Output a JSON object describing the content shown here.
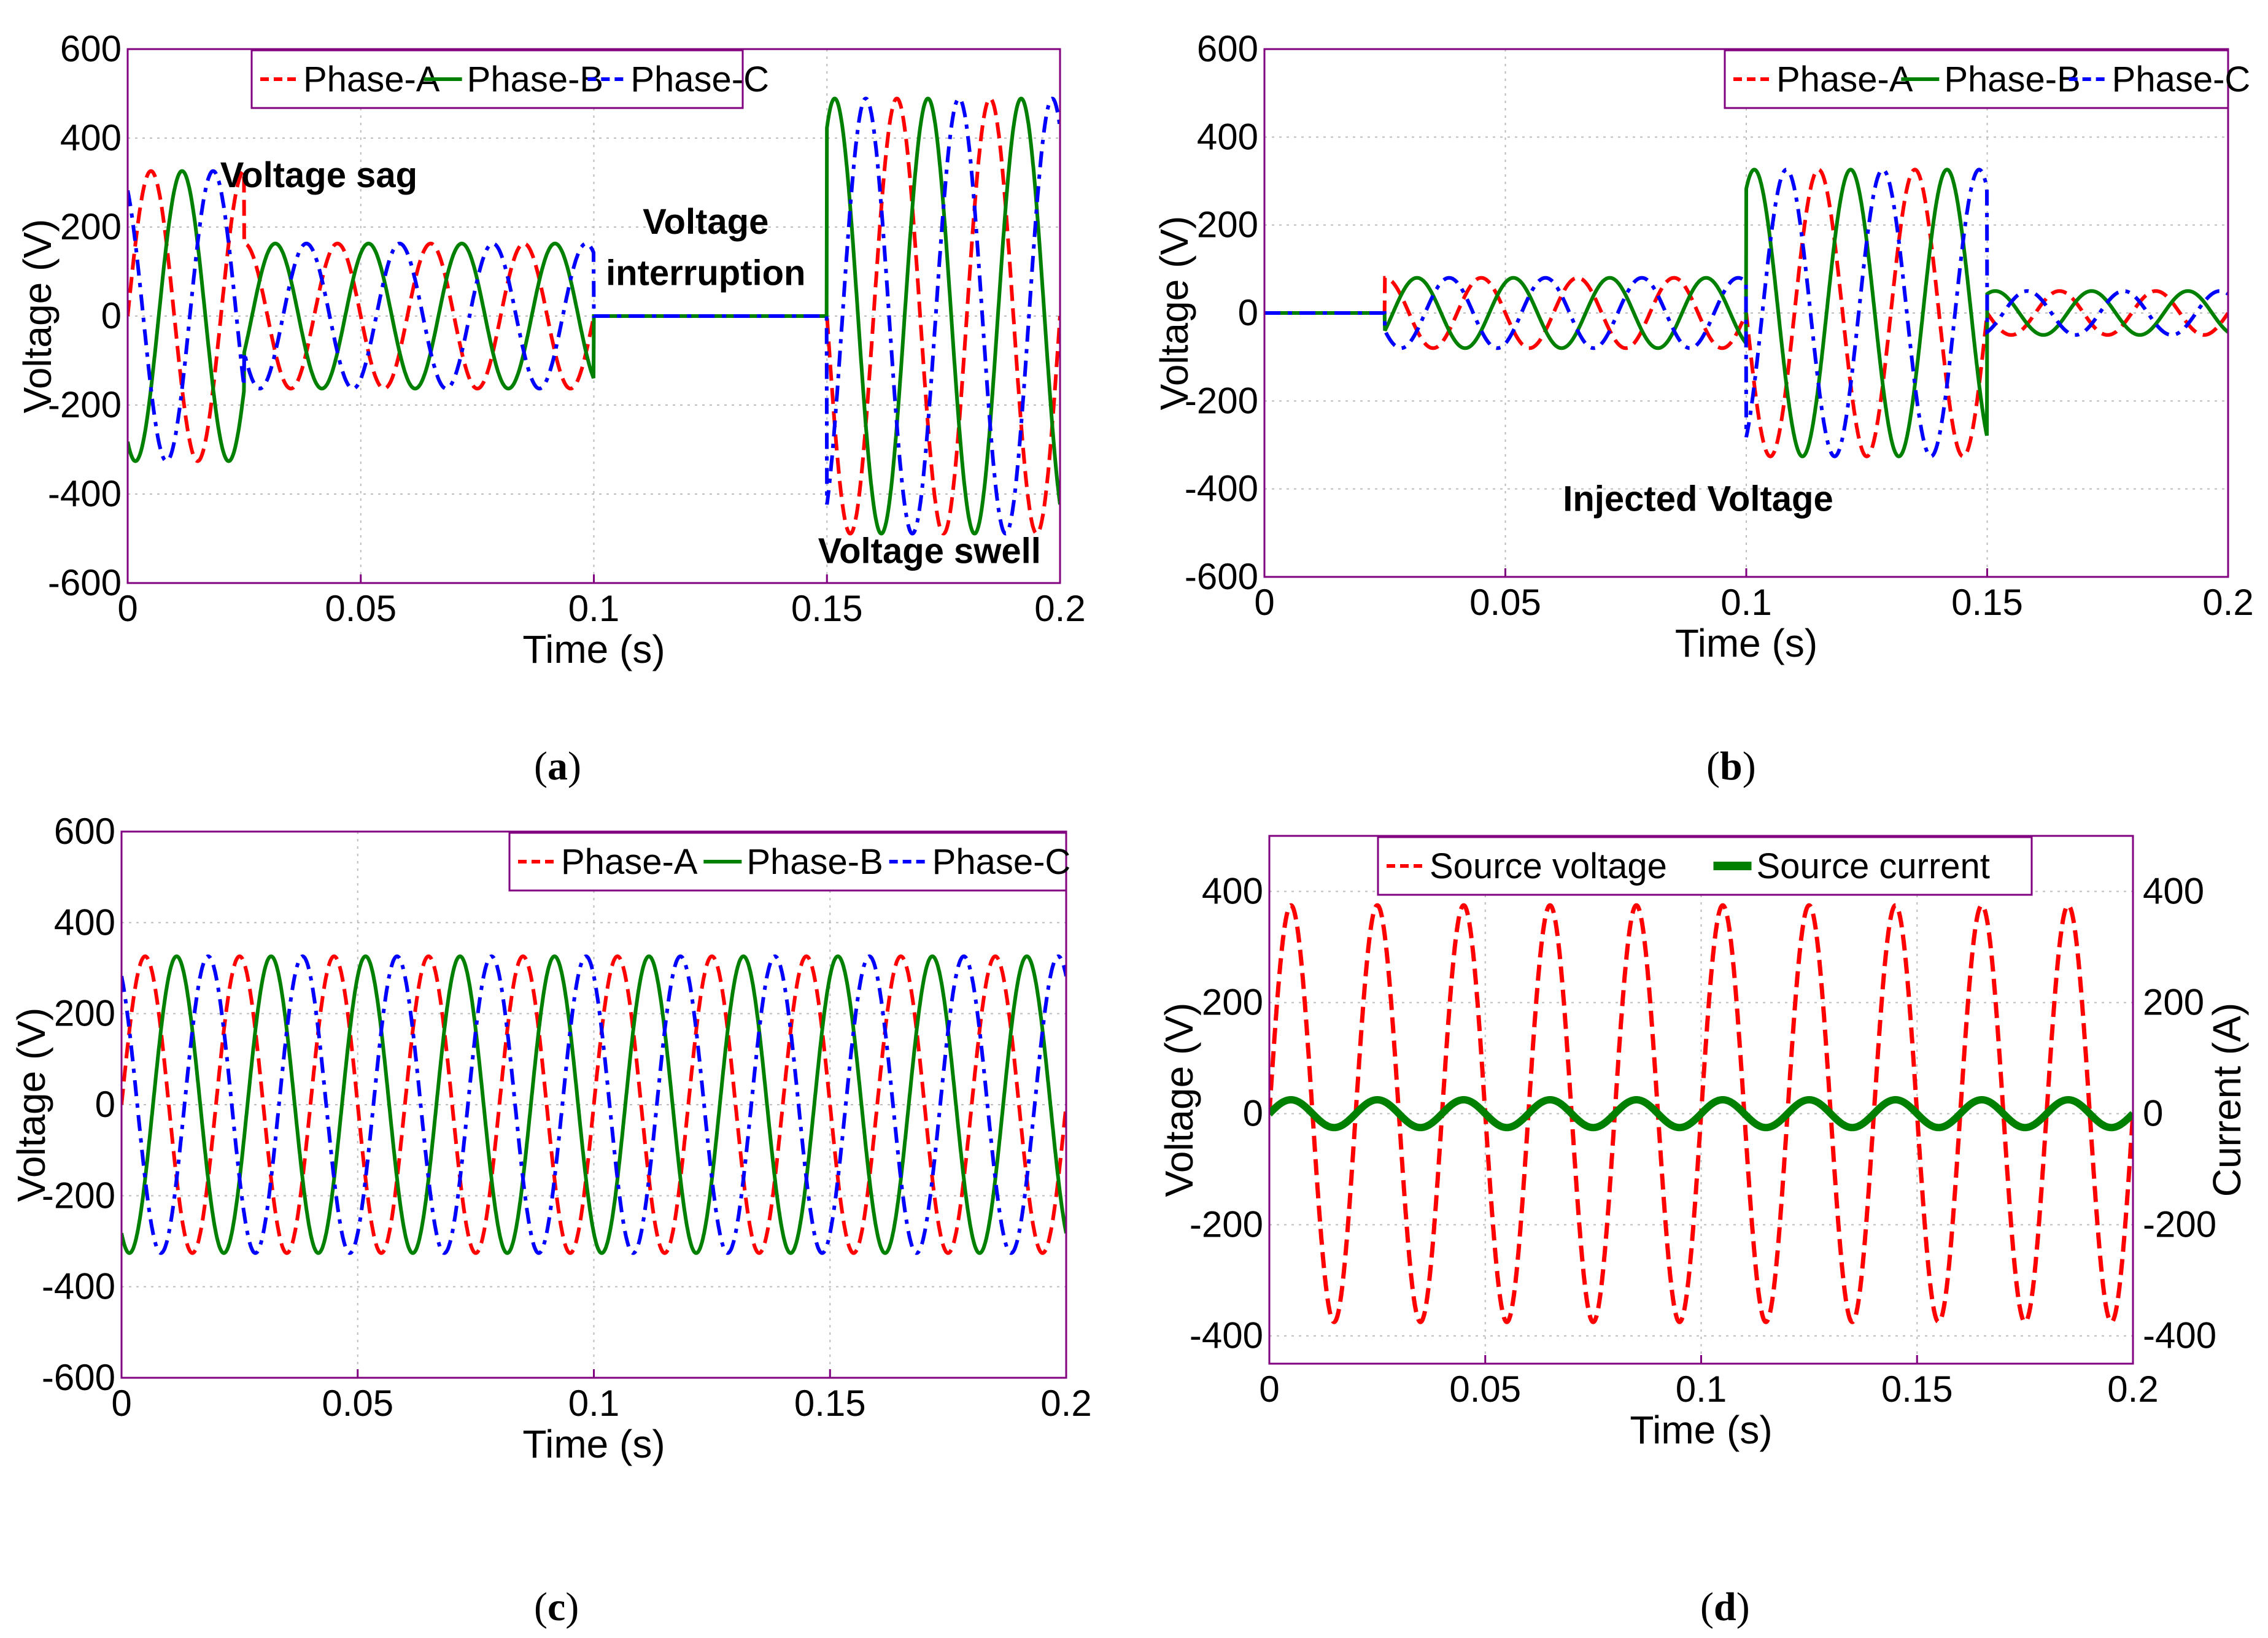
{
  "chart_data": [
    {
      "id": "a",
      "type": "line",
      "caption": {
        "open": "(",
        "letter": "a",
        "close": ")"
      },
      "xlabel": "Time (s)",
      "ylabel": "Voltage (V)",
      "xlim": [
        0,
        0.2
      ],
      "ylim": [
        -600,
        600
      ],
      "xticks": [
        "0",
        "0.05",
        "0.1",
        "0.15",
        "0.2"
      ],
      "yticks": [
        "-600",
        "-400",
        "-200",
        "0",
        "200",
        "400",
        "600"
      ],
      "legend_position": "top-center",
      "series": [
        {
          "name": "Phase-A",
          "color": "#ff0000",
          "style": "dashed",
          "phase_deg": 0
        },
        {
          "name": "Phase-B",
          "color": "#008000",
          "style": "solid",
          "phase_deg": -120
        },
        {
          "name": "Phase-C",
          "color": "#0000ff",
          "style": "dashdot",
          "phase_deg": 120
        }
      ],
      "waveform": {
        "frequency_hz": 50,
        "segments": [
          {
            "t0": 0,
            "t1": 0.025,
            "amplitude": 326
          },
          {
            "t0": 0.025,
            "t1": 0.1,
            "amplitude": 163
          },
          {
            "t0": 0.1,
            "t1": 0.15,
            "amplitude": 0
          },
          {
            "t0": 0.15,
            "t1": 0.2,
            "amplitude": 489
          }
        ]
      },
      "annotations": [
        {
          "text": "Voltage sag",
          "x": 0.041,
          "y": 290
        },
        {
          "text": "Voltage",
          "x": 0.124,
          "y": 185
        },
        {
          "text": "interruption",
          "x": 0.124,
          "y": 70
        },
        {
          "text": "Voltage swell",
          "x": 0.172,
          "y": -555
        }
      ]
    },
    {
      "id": "b",
      "type": "line",
      "caption": {
        "open": "(",
        "letter": "b",
        "close": ")"
      },
      "xlabel": "Time (s)",
      "ylabel": "Voltage (V)",
      "xlim": [
        0,
        0.2
      ],
      "ylim": [
        -600,
        600
      ],
      "xticks": [
        "0",
        "0.05",
        "0.1",
        "0.15",
        "0.2"
      ],
      "yticks": [
        "-600",
        "-400",
        "-200",
        "0",
        "200",
        "400",
        "600"
      ],
      "legend_position": "top-right",
      "series": [
        {
          "name": "Phase-A",
          "color": "#ff0000",
          "style": "dashed",
          "phase_deg": 0
        },
        {
          "name": "Phase-B",
          "color": "#008000",
          "style": "solid",
          "phase_deg": -120
        },
        {
          "name": "Phase-C",
          "color": "#0000ff",
          "style": "dashdot",
          "phase_deg": 120
        }
      ],
      "waveform": {
        "frequency_hz": 50,
        "segments": [
          {
            "t0": 0,
            "t1": 0.025,
            "amplitude": 0
          },
          {
            "t0": 0.025,
            "t1": 0.1,
            "amplitude": 80
          },
          {
            "t0": 0.1,
            "t1": 0.15,
            "amplitude": 326,
            "invert": true
          },
          {
            "t0": 0.15,
            "t1": 0.2,
            "amplitude": 50
          }
        ]
      },
      "annotations": [
        {
          "text": "Injected Voltage",
          "x": 0.09,
          "y": -450
        }
      ]
    },
    {
      "id": "c",
      "type": "line",
      "caption": {
        "open": "(",
        "letter": "c",
        "close": ")"
      },
      "xlabel": "Time (s)",
      "ylabel": "Voltage (V)",
      "xlim": [
        0,
        0.2
      ],
      "ylim": [
        -600,
        600
      ],
      "xticks": [
        "0",
        "0.05",
        "0.1",
        "0.15",
        "0.2"
      ],
      "yticks": [
        "-600",
        "-400",
        "-200",
        "0",
        "200",
        "400",
        "600"
      ],
      "legend_position": "top-right",
      "series": [
        {
          "name": "Phase-A",
          "color": "#ff0000",
          "style": "dashed",
          "phase_deg": 0
        },
        {
          "name": "Phase-B",
          "color": "#008000",
          "style": "solid",
          "phase_deg": -120
        },
        {
          "name": "Phase-C",
          "color": "#0000ff",
          "style": "dashdot",
          "phase_deg": 120
        }
      ],
      "waveform": {
        "frequency_hz": 50,
        "segments": [
          {
            "t0": 0,
            "t1": 0.2,
            "amplitude": 326
          }
        ]
      },
      "annotations": []
    },
    {
      "id": "d",
      "type": "line",
      "caption": {
        "open": "(",
        "letter": "d",
        "close": ")"
      },
      "xlabel": "Time (s)",
      "ylabel": "Voltage (V)",
      "ylabel_right": "Current (A)",
      "xlim": [
        0,
        0.2
      ],
      "ylim": [
        -450,
        500
      ],
      "ylim_right": [
        -450,
        500
      ],
      "xticks": [
        "0",
        "0.05",
        "0.1",
        "0.15",
        "0.2"
      ],
      "yticks": [
        "-400",
        "-200",
        "0",
        "200",
        "400"
      ],
      "yticks_right": [
        "-400",
        "-200",
        "0",
        "200",
        "400"
      ],
      "legend_position": "top-center",
      "series": [
        {
          "name": "Source voltage",
          "color": "#ff0000",
          "style": "dashed",
          "amplitude": 375,
          "frequency_hz": 50,
          "phase_deg": 0,
          "axis": "left"
        },
        {
          "name": "Source current",
          "color": "#008000",
          "style": "solid",
          "amplitude": 25,
          "frequency_hz": 50,
          "phase_deg": 0,
          "axis": "right"
        }
      ],
      "annotations": []
    }
  ]
}
